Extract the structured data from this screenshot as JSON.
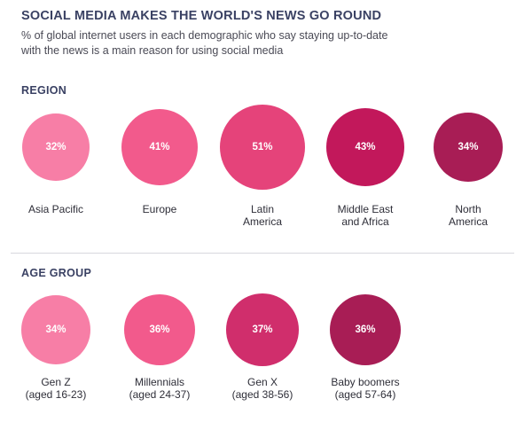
{
  "title": "SOCIAL MEDIA MAKES THE WORLD'S NEWS GO ROUND",
  "subtitle": "% of global internet users in each demographic who say staying up-to-date with the news is a main reason for using social media",
  "sections": {
    "region": "REGION",
    "age": "AGE GROUP"
  },
  "chart_data": [
    {
      "type": "bubble",
      "title": "REGION",
      "unit": "%",
      "categories": [
        "Asia Pacific",
        "Europe",
        "Latin America",
        "Middle East and Africa",
        "North America"
      ],
      "values": [
        32,
        41,
        51,
        43,
        34
      ],
      "display": [
        "32%",
        "41%",
        "51%",
        "43%",
        "34%"
      ],
      "labels": [
        "Asia Pacific",
        "Europe",
        "Latin\nAmerica",
        "Middle East\nand Africa",
        "North\nAmerica"
      ],
      "colors": [
        "#f77ea6",
        "#f25a8c",
        "#e5437a",
        "#c2185b",
        "#a81d55"
      ]
    },
    {
      "type": "bubble",
      "title": "AGE GROUP",
      "unit": "%",
      "categories": [
        "Gen Z (aged 16-23)",
        "Millennials (aged 24-37)",
        "Gen X (aged 38-56)",
        "Baby boomers (aged 57-64)"
      ],
      "values": [
        34,
        36,
        37,
        36
      ],
      "display": [
        "34%",
        "36%",
        "37%",
        "36%"
      ],
      "labels": [
        "Gen Z\n(aged 16-23)",
        "Millennials\n(aged 24-37)",
        "Gen X\n(aged 38-56)",
        "Baby boomers\n(aged 57-64)"
      ],
      "colors": [
        "#f77ea6",
        "#f25a8c",
        "#d02e6c",
        "#a81d55"
      ]
    }
  ]
}
